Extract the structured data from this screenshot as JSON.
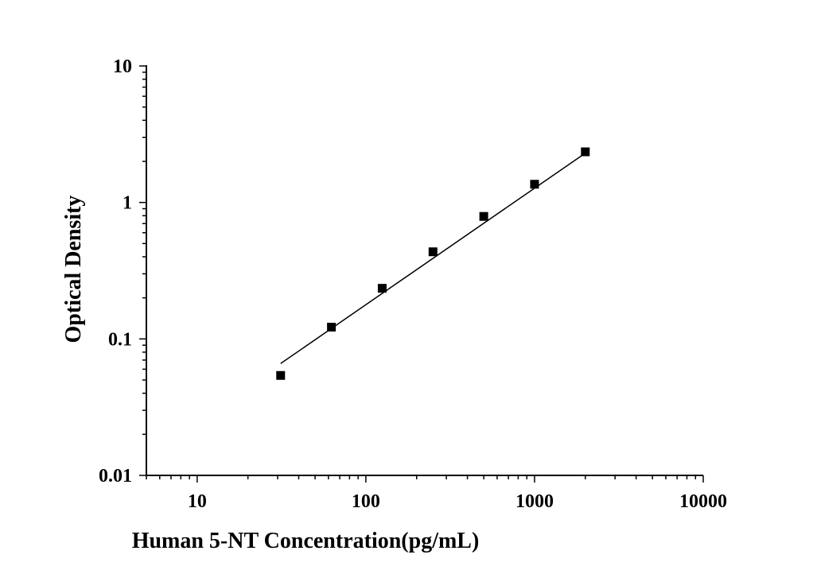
{
  "chart_data": {
    "type": "scatter",
    "xlabel": "Human 5-NT Concentration(pg/mL)",
    "ylabel": "Optical Density",
    "x_scale": "log",
    "y_scale": "log",
    "xlim": [
      5,
      10000
    ],
    "ylim": [
      0.01,
      10
    ],
    "x_ticks": [
      {
        "value": 10,
        "label": "10"
      },
      {
        "value": 100,
        "label": "100"
      },
      {
        "value": 1000,
        "label": "1000"
      },
      {
        "value": 10000,
        "label": "10000"
      }
    ],
    "y_ticks": [
      {
        "value": 0.01,
        "label": "0.01"
      },
      {
        "value": 0.1,
        "label": "0.1"
      },
      {
        "value": 1,
        "label": "1"
      },
      {
        "value": 10,
        "label": "10"
      }
    ],
    "grid": false,
    "series": [
      {
        "marker": "square",
        "color": "#000000",
        "x": [
          31.25,
          62.5,
          125,
          250,
          500,
          1000,
          2000
        ],
        "y": [
          0.054,
          0.122,
          0.235,
          0.435,
          0.79,
          1.36,
          2.35
        ]
      }
    ],
    "fit_line": {
      "color": "#000000",
      "x": [
        31.25,
        2000
      ],
      "y": [
        0.066,
        2.3
      ]
    }
  }
}
